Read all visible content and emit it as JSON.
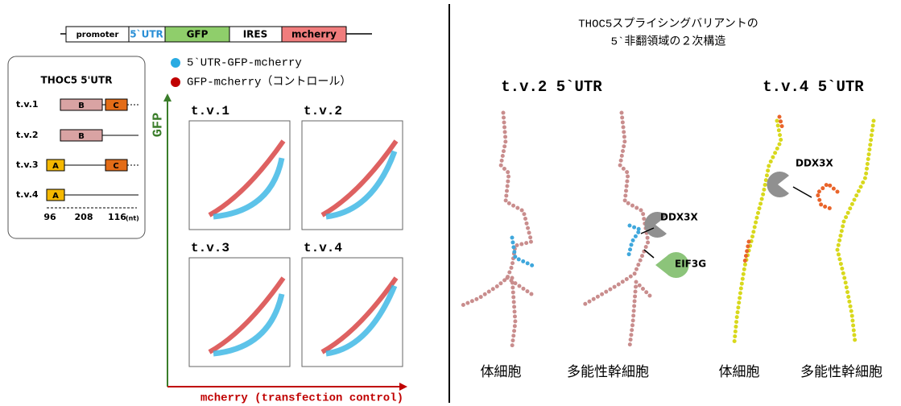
{
  "construct": [
    "promoter",
    "5`UTR",
    "GFP",
    "IRES",
    "mcherry"
  ],
  "isoforms": {
    "title": "THOC5 5'UTR",
    "rows": [
      {
        "label": "t.v.1",
        "blocks": [
          "B",
          "C"
        ]
      },
      {
        "label": "t.v.2",
        "blocks": [
          "B"
        ]
      },
      {
        "label": "t.v.3",
        "blocks": [
          "A",
          "C"
        ]
      },
      {
        "label": "t.v.4",
        "blocks": [
          "A"
        ]
      }
    ],
    "lengths": [
      "96",
      "208",
      "116"
    ],
    "unit": "(nt)"
  },
  "legend": [
    "5`UTR-GFP-mcherry",
    "GFP-mcherry（コントロール）"
  ],
  "plots": {
    "y_label": "GFP",
    "x_label": "mcherry (transfection control)",
    "panels": [
      "t.v.1",
      "t.v.2",
      "t.v.3",
      "t.v.4"
    ]
  },
  "right": {
    "title_lines": [
      "THOC5スプライシングバリアントの",
      "5`非翻領域の２次構造"
    ],
    "structures": [
      {
        "title": "t.v.2 5`UTR",
        "labels": [
          "体細胞",
          "多能性幹細胞"
        ]
      },
      {
        "title": "t.v.4 5`UTR",
        "labels": [
          "体細胞",
          "多能性幹細胞"
        ]
      }
    ],
    "proteins": [
      "DDX3X",
      "EIF3G",
      "DDX3X"
    ]
  }
}
